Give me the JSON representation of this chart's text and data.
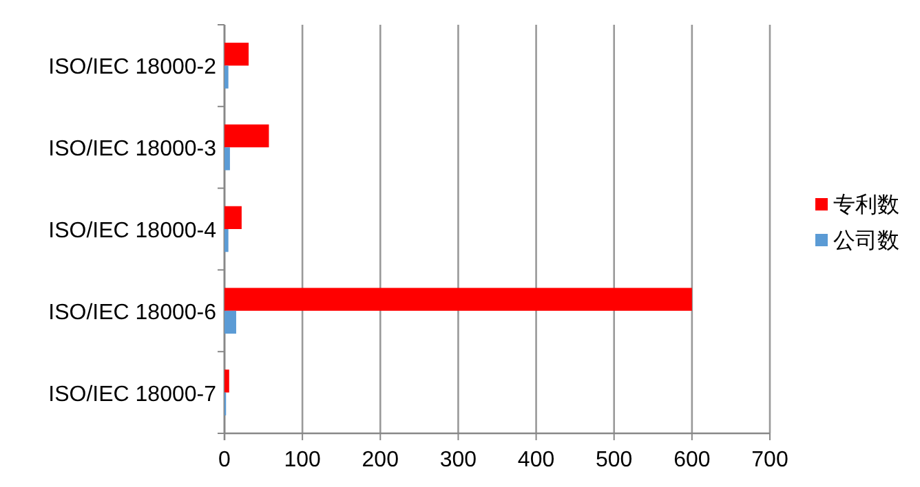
{
  "chart_data": {
    "type": "bar",
    "orientation": "horizontal",
    "categories": [
      "ISO/IEC 18000-2",
      "ISO/IEC 18000-3",
      "ISO/IEC 18000-4",
      "ISO/IEC 18000-6",
      "ISO/IEC 18000-7"
    ],
    "series": [
      {
        "name": "专利数",
        "color": "#ff0000",
        "values": [
          31,
          57,
          22,
          600,
          6
        ]
      },
      {
        "name": "公司数",
        "color": "#5b9bd5",
        "values": [
          5,
          7,
          5,
          15,
          2
        ]
      }
    ],
    "xlim": [
      0,
      700
    ],
    "xticks": [
      0,
      100,
      200,
      300,
      400,
      500,
      600,
      700
    ],
    "grid": "x",
    "legend": "right"
  }
}
